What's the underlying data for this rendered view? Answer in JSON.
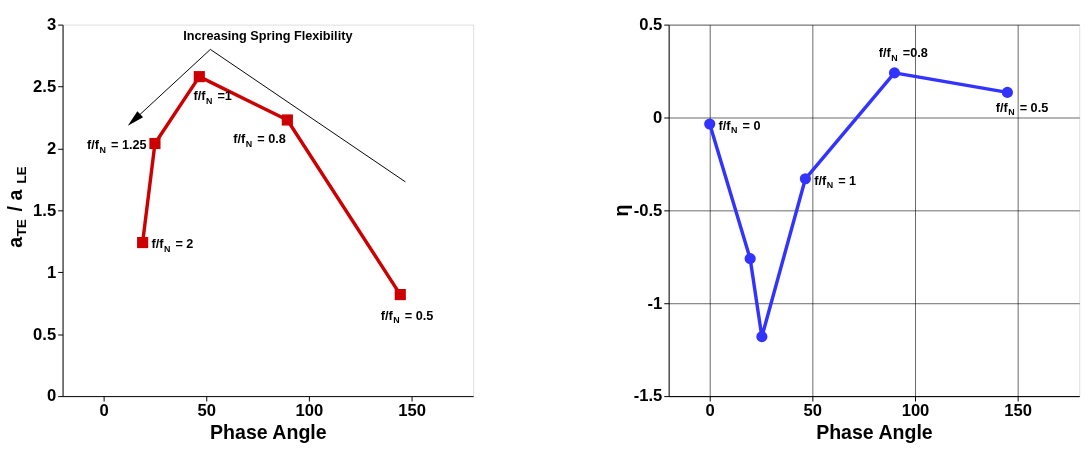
{
  "chart_data": [
    {
      "type": "line",
      "xlabel": "Phase Angle",
      "ylabel": "a$_{TE}$ / a$_{LE}$",
      "xlim": [
        -20,
        180
      ],
      "xticks": [
        0,
        50,
        100,
        150
      ],
      "ylim": [
        0,
        3
      ],
      "yticks": [
        0,
        0.5,
        1,
        1.5,
        2,
        2.5,
        3
      ],
      "grid": false,
      "marker": "square",
      "line_style": "solid",
      "series": [
        {
          "color": "#cc0000",
          "x": [
            19,
            25,
            46.6,
            89.5,
            144.5
          ],
          "values": [
            1.24,
            2.04,
            2.58,
            2.23,
            0.82
          ]
        }
      ],
      "annotations": [
        "Increasing Spring Flexibility",
        {
          "text": "f/f$_{N}$ = 2",
          "x": 19,
          "y": 1.24
        },
        {
          "text": "f/f$_{N}$ = 1.25",
          "x": 25,
          "y": 2.04
        },
        {
          "text": "f/f$_{N}$ =1",
          "x": 46.6,
          "y": 2.58
        },
        {
          "text": "f/f$_{N}$ = 0.8",
          "x": 89.5,
          "y": 2.23
        },
        {
          "text": "f/f$_{N}$ = 0.5",
          "x": 144.5,
          "y": 0.82
        }
      ]
    },
    {
      "type": "line",
      "xlabel": "Phase Angle",
      "ylabel": "η",
      "xlim": [
        -20,
        180
      ],
      "xticks": [
        0,
        50,
        100,
        150
      ],
      "ylim": [
        -1.5,
        0.5
      ],
      "yticks": [
        -1.5,
        -1,
        -0.5,
        0,
        0.5
      ],
      "grid": true,
      "marker": "circle",
      "line_style": "solid",
      "series": [
        {
          "color": "#3333ff",
          "x": [
            0,
            19.7,
            25.4,
            46.6,
            90,
            145
          ],
          "values": [
            -0.035,
            -0.76,
            -1.18,
            -0.33,
            0.24,
            0.135
          ]
        }
      ],
      "annotations": [
        {
          "text": "f/f$_{N}$ = 0",
          "x": 0,
          "y": -0.035
        },
        {
          "text": "f/f$_{N}$ = 1",
          "x": 46.6,
          "y": -0.33
        },
        {
          "text": "f/f$_{N}$ =0.8",
          "x": 90,
          "y": 0.24
        },
        {
          "text": "f/f$_{N}$ = 0.5",
          "x": 145,
          "y": 0.135
        }
      ]
    }
  ]
}
